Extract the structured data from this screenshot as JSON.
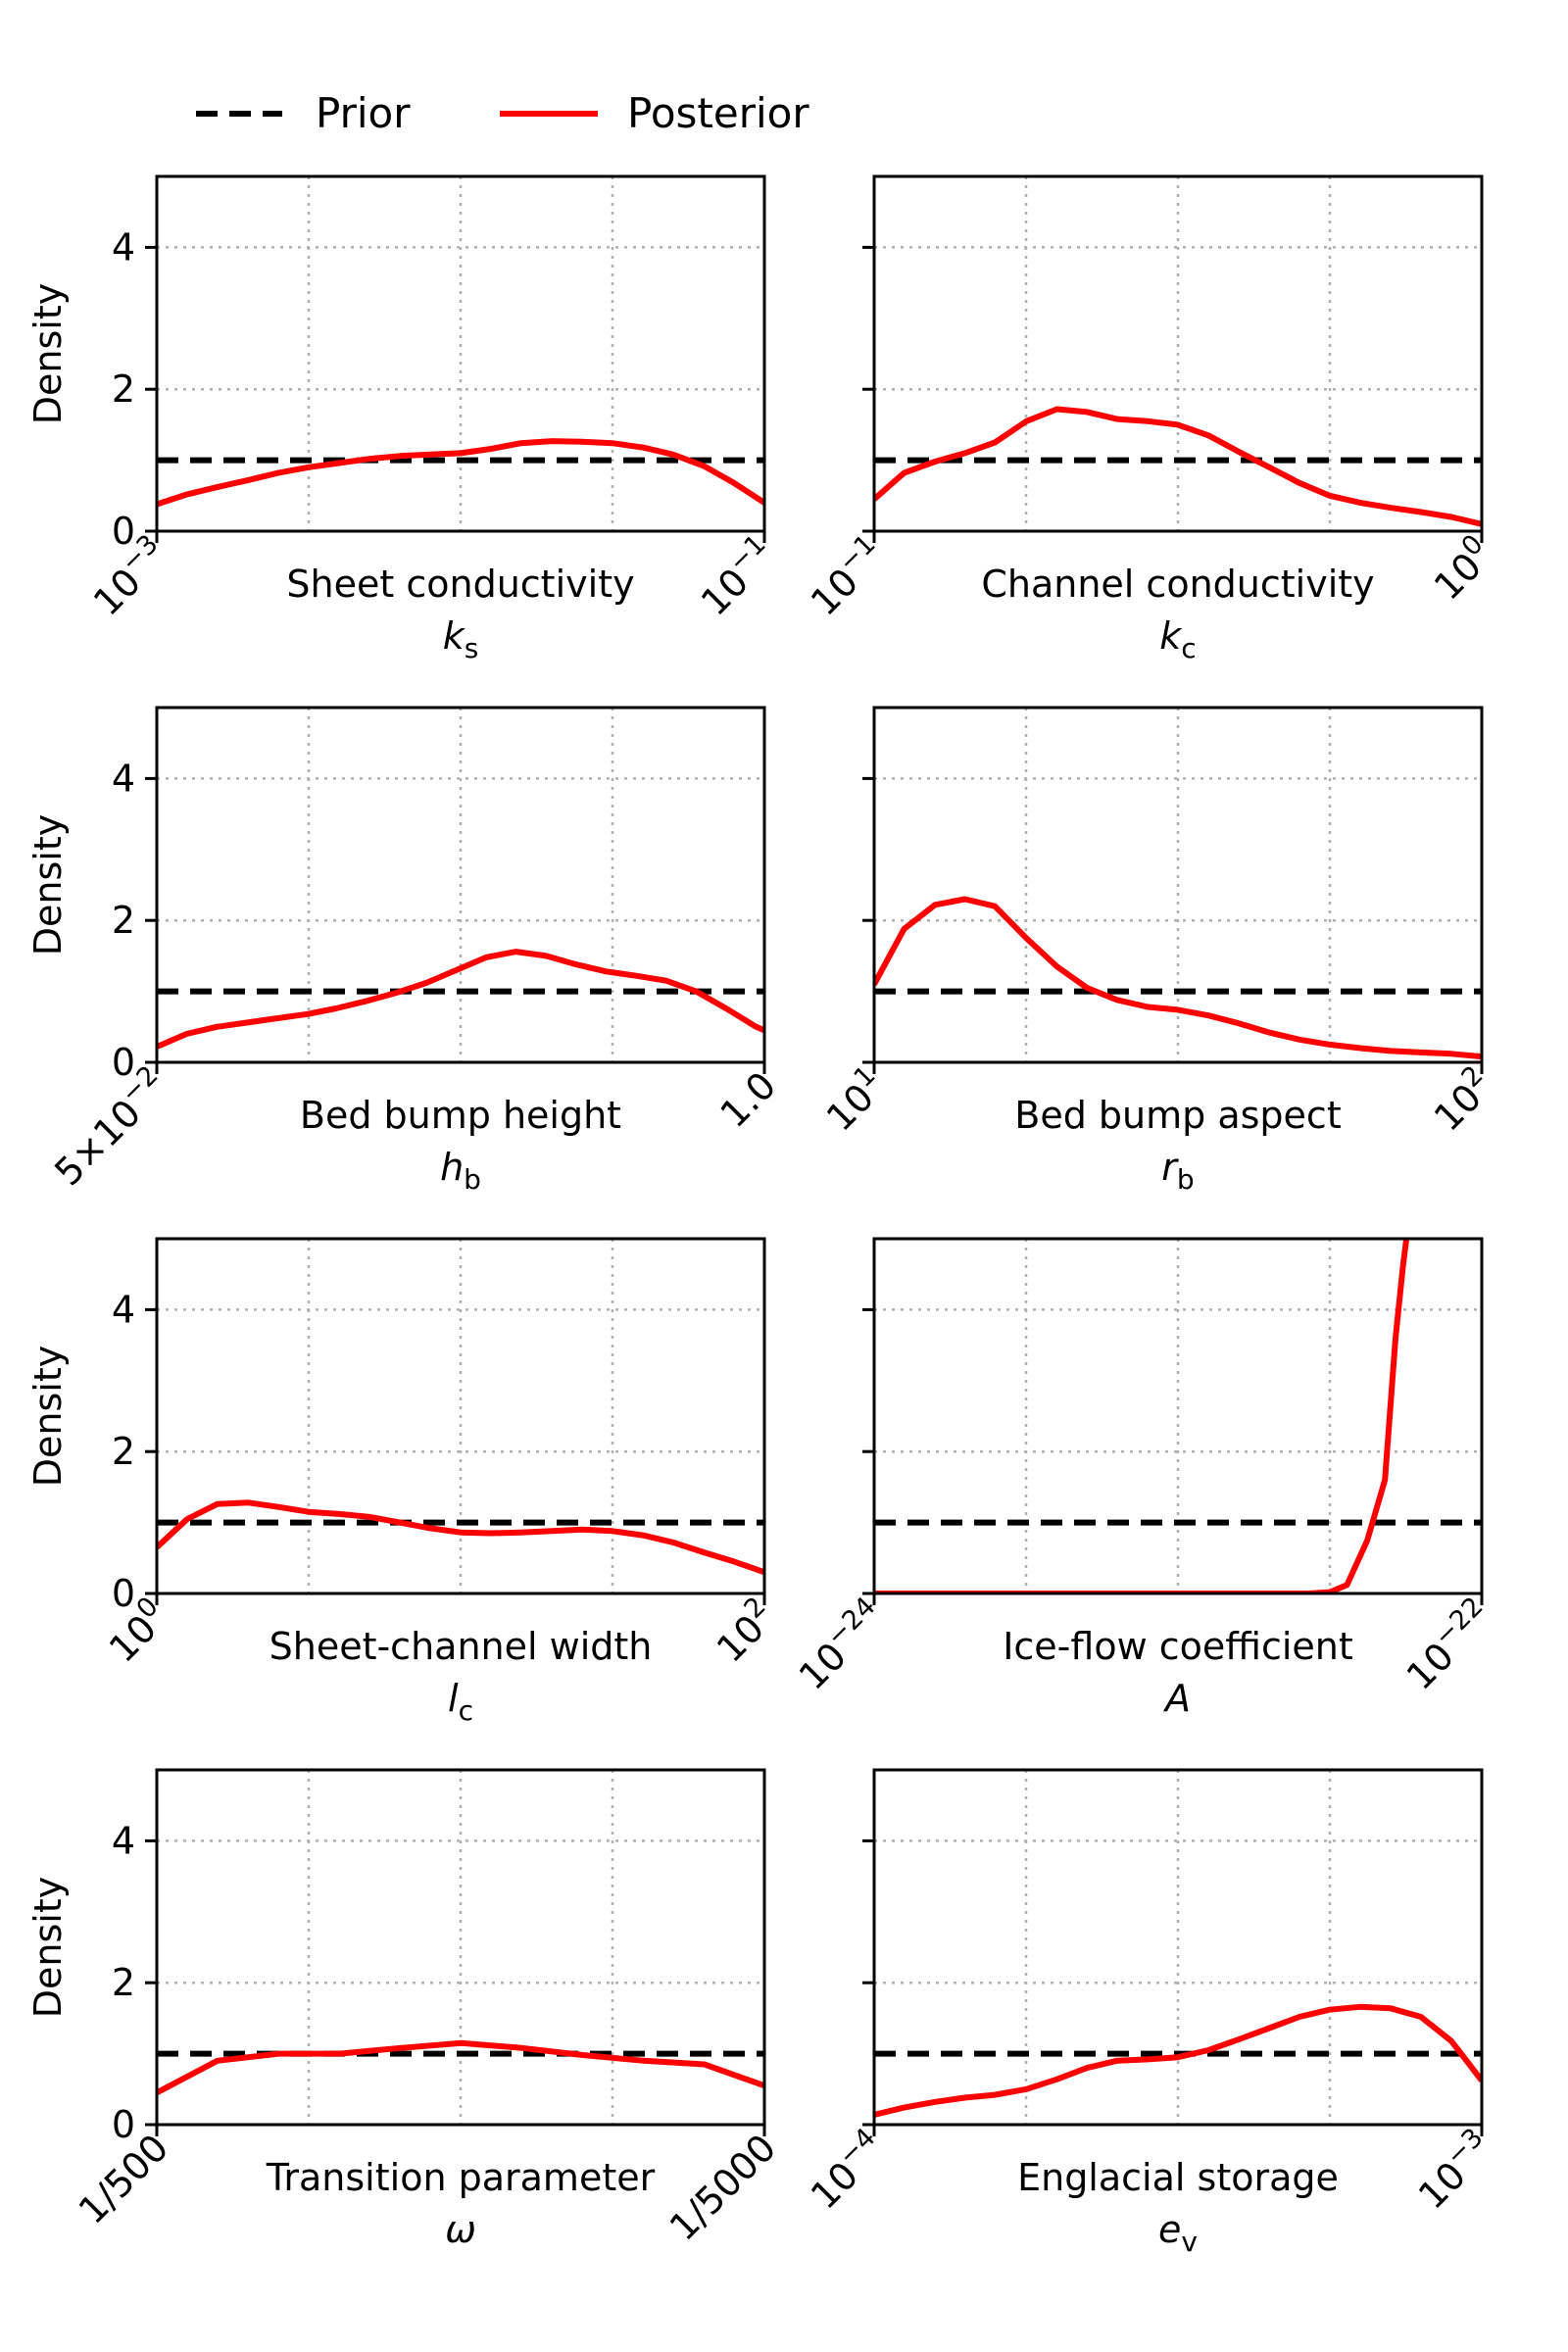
{
  "legend": {
    "prior_label": "Prior",
    "posterior_label": "Posterior",
    "prior_color": "#000000",
    "posterior_color": "#ff0000"
  },
  "chart_data": [
    {
      "type": "line",
      "title": "",
      "xlabel": "Sheet conductivity",
      "xlabel_symbol": "k",
      "xlabel_sub": "s",
      "x_scale": "log",
      "xlim": [
        0.001,
        0.1
      ],
      "xtick_labels": [
        {
          "base": "10",
          "exp": "−3"
        },
        {
          "base": "10",
          "exp": "−1"
        }
      ],
      "ylabel": "Density",
      "ylim": [
        0,
        5
      ],
      "yticks": [
        0,
        2,
        4
      ],
      "grid": true,
      "series": [
        {
          "name": "Prior",
          "x": [
            0.001,
            0.1
          ],
          "values": [
            1,
            1
          ]
        },
        {
          "name": "Posterior",
          "x": [
            0.001,
            0.00126,
            0.00158,
            0.002,
            0.00251,
            0.00316,
            0.00398,
            0.00501,
            0.00631,
            0.00794,
            0.01,
            0.0126,
            0.0158,
            0.02,
            0.0251,
            0.0316,
            0.0398,
            0.0501,
            0.0631,
            0.0794,
            0.1
          ],
          "values": [
            0.38,
            0.52,
            0.62,
            0.72,
            0.82,
            0.9,
            0.96,
            1.02,
            1.06,
            1.08,
            1.1,
            1.16,
            1.24,
            1.27,
            1.26,
            1.24,
            1.18,
            1.08,
            0.92,
            0.68,
            0.4
          ]
        }
      ]
    },
    {
      "type": "line",
      "title": "",
      "xlabel": "Channel conductivity",
      "xlabel_symbol": "k",
      "xlabel_sub": "c",
      "x_scale": "log",
      "xlim": [
        0.1,
        1
      ],
      "xtick_labels": [
        {
          "base": "10",
          "exp": "−1"
        },
        {
          "base": "10",
          "exp": "0"
        }
      ],
      "ylabel": "",
      "ylim": [
        0,
        5
      ],
      "yticks": [
        0,
        2,
        4
      ],
      "grid": true,
      "series": [
        {
          "name": "Prior",
          "x": [
            0.1,
            1
          ],
          "values": [
            1,
            1
          ]
        },
        {
          "name": "Posterior",
          "x": [
            0.1,
            0.112,
            0.126,
            0.141,
            0.158,
            0.178,
            0.2,
            0.224,
            0.251,
            0.282,
            0.316,
            0.355,
            0.398,
            0.447,
            0.501,
            0.562,
            0.631,
            0.708,
            0.794,
            0.891,
            1
          ],
          "values": [
            0.45,
            0.82,
            0.98,
            1.1,
            1.25,
            1.55,
            1.72,
            1.68,
            1.58,
            1.55,
            1.5,
            1.35,
            1.12,
            0.9,
            0.68,
            0.5,
            0.4,
            0.33,
            0.27,
            0.2,
            0.1
          ]
        }
      ]
    },
    {
      "type": "line",
      "title": "",
      "xlabel": "Bed bump height",
      "xlabel_symbol": "h",
      "xlabel_sub": "b",
      "x_scale": "log",
      "xlim": [
        0.05,
        1
      ],
      "xtick_labels": [
        {
          "base": "5×10",
          "exp": "−2"
        },
        {
          "base": "1.0",
          "exp": ""
        }
      ],
      "ylabel": "Density",
      "ylim": [
        0,
        5
      ],
      "yticks": [
        0,
        2,
        4
      ],
      "grid": true,
      "series": [
        {
          "name": "Prior",
          "x": [
            0.05,
            1
          ],
          "values": [
            1,
            1
          ]
        },
        {
          "name": "Posterior",
          "x": [
            0.05,
            0.0579,
            0.0672,
            0.0779,
            0.0903,
            0.105,
            0.121,
            0.14,
            0.163,
            0.189,
            0.219,
            0.254,
            0.294,
            0.341,
            0.395,
            0.458,
            0.531,
            0.616,
            0.714,
            0.828,
            0.96,
            1
          ],
          "values": [
            0.22,
            0.4,
            0.5,
            0.56,
            0.62,
            0.68,
            0.76,
            0.86,
            0.98,
            1.12,
            1.3,
            1.48,
            1.56,
            1.5,
            1.38,
            1.28,
            1.22,
            1.15,
            1.0,
            0.76,
            0.5,
            0.45
          ]
        }
      ]
    },
    {
      "type": "line",
      "title": "",
      "xlabel": "Bed bump aspect",
      "xlabel_symbol": "r",
      "xlabel_sub": "b",
      "x_scale": "log",
      "xlim": [
        10,
        100
      ],
      "xtick_labels": [
        {
          "base": "10",
          "exp": "1"
        },
        {
          "base": "10",
          "exp": "2"
        }
      ],
      "ylabel": "",
      "ylim": [
        0,
        5
      ],
      "yticks": [
        0,
        2,
        4
      ],
      "grid": true,
      "series": [
        {
          "name": "Prior",
          "x": [
            10,
            100
          ],
          "values": [
            1,
            1
          ]
        },
        {
          "name": "Posterior",
          "x": [
            10,
            11.2,
            12.6,
            14.1,
            15.8,
            17.8,
            20,
            22.4,
            25.1,
            28.2,
            31.6,
            35.5,
            39.8,
            44.7,
            50.1,
            56.2,
            63.1,
            70.8,
            79.4,
            89.1,
            100
          ],
          "values": [
            1.1,
            1.88,
            2.22,
            2.3,
            2.2,
            1.75,
            1.35,
            1.05,
            0.88,
            0.78,
            0.74,
            0.66,
            0.55,
            0.42,
            0.32,
            0.25,
            0.2,
            0.16,
            0.14,
            0.12,
            0.08
          ]
        }
      ]
    },
    {
      "type": "line",
      "title": "",
      "xlabel": "Sheet-channel width",
      "xlabel_symbol": "l",
      "xlabel_sub": "c",
      "x_scale": "log",
      "xlim": [
        1,
        100
      ],
      "xtick_labels": [
        {
          "base": "10",
          "exp": "0"
        },
        {
          "base": "10",
          "exp": "2"
        }
      ],
      "ylabel": "Density",
      "ylim": [
        0,
        5
      ],
      "yticks": [
        0,
        2,
        4
      ],
      "grid": true,
      "series": [
        {
          "name": "Prior",
          "x": [
            1,
            100
          ],
          "values": [
            1,
            1
          ]
        },
        {
          "name": "Posterior",
          "x": [
            1,
            1.26,
            1.58,
            2,
            2.51,
            3.16,
            3.98,
            5.01,
            6.31,
            7.94,
            10,
            12.6,
            15.8,
            20,
            25.1,
            31.6,
            39.8,
            50.1,
            63.1,
            79.4,
            100
          ],
          "values": [
            0.65,
            1.05,
            1.26,
            1.28,
            1.22,
            1.15,
            1.12,
            1.08,
            1.0,
            0.92,
            0.86,
            0.85,
            0.86,
            0.88,
            0.9,
            0.88,
            0.82,
            0.72,
            0.58,
            0.45,
            0.3
          ]
        }
      ]
    },
    {
      "type": "line",
      "title": "",
      "xlabel": "Ice-flow coefficient",
      "xlabel_symbol": "A",
      "xlabel_sub": "",
      "x_scale": "log",
      "xlim": [
        1e-24,
        1e-22
      ],
      "xtick_labels": [
        {
          "base": "10",
          "exp": "−24"
        },
        {
          "base": "10",
          "exp": "−22"
        }
      ],
      "ylabel": "",
      "ylim": [
        0,
        5
      ],
      "yticks": [
        0,
        2,
        4
      ],
      "grid": true,
      "series": [
        {
          "name": "Prior",
          "x": [
            1e-24,
            1e-22
          ],
          "values": [
            1,
            1
          ]
        },
        {
          "name": "Posterior",
          "x": [
            1e-24,
            5e-24,
            2e-23,
            2.7e-23,
            3.16e-23,
            3.6e-23,
            4.2e-23,
            4.8e-23,
            5.2e-23,
            5.5e-23,
            5.65e-23
          ],
          "values": [
            0,
            0,
            0,
            0,
            0.02,
            0.12,
            0.75,
            1.6,
            3.6,
            4.6,
            5.0
          ]
        }
      ]
    },
    {
      "type": "line",
      "title": "",
      "xlabel": "Transition parameter",
      "xlabel_symbol": "ω",
      "xlabel_sub": "",
      "x_scale": "log-reversed",
      "xlim": [
        0.002,
        0.0002
      ],
      "xtick_labels": [
        {
          "base": "1/500",
          "exp": ""
        },
        {
          "base": "1/5000",
          "exp": ""
        }
      ],
      "ylabel": "Density",
      "ylim": [
        0,
        5
      ],
      "yticks": [
        0,
        2,
        4
      ],
      "grid": true,
      "series": [
        {
          "name": "Prior",
          "x": [
            0.002,
            0.0002
          ],
          "values": [
            1,
            1
          ]
        },
        {
          "name": "Posterior",
          "x": [
            0.002,
            0.00159,
            0.00126,
            0.001,
            0.000794,
            0.000631,
            0.000501,
            0.000398,
            0.000316,
            0.000251,
            0.0002
          ],
          "values": [
            0.45,
            0.9,
            1.0,
            1.0,
            1.08,
            1.15,
            1.08,
            0.98,
            0.9,
            0.85,
            0.55
          ]
        }
      ]
    },
    {
      "type": "line",
      "title": "",
      "xlabel": "Englacial storage",
      "xlabel_symbol": "e",
      "xlabel_sub": "v",
      "x_scale": "log",
      "xlim": [
        0.0001,
        0.001
      ],
      "xtick_labels": [
        {
          "base": "10",
          "exp": "−4"
        },
        {
          "base": "10",
          "exp": "−3"
        }
      ],
      "ylabel": "",
      "ylim": [
        0,
        5
      ],
      "yticks": [
        0,
        2,
        4
      ],
      "grid": true,
      "series": [
        {
          "name": "Prior",
          "x": [
            0.0001,
            0.001
          ],
          "values": [
            1,
            1
          ]
        },
        {
          "name": "Posterior",
          "x": [
            0.0001,
            0.000112,
            0.000126,
            0.000141,
            0.000158,
            0.000178,
            0.0002,
            0.000224,
            0.000251,
            0.000282,
            0.000316,
            0.000355,
            0.000398,
            0.000447,
            0.000501,
            0.000562,
            0.000631,
            0.000708,
            0.000794,
            0.000891,
            0.001
          ],
          "values": [
            0.14,
            0.24,
            0.32,
            0.38,
            0.42,
            0.5,
            0.64,
            0.8,
            0.9,
            0.92,
            0.95,
            1.05,
            1.2,
            1.36,
            1.52,
            1.62,
            1.66,
            1.64,
            1.52,
            1.18,
            0.62
          ]
        }
      ]
    }
  ]
}
